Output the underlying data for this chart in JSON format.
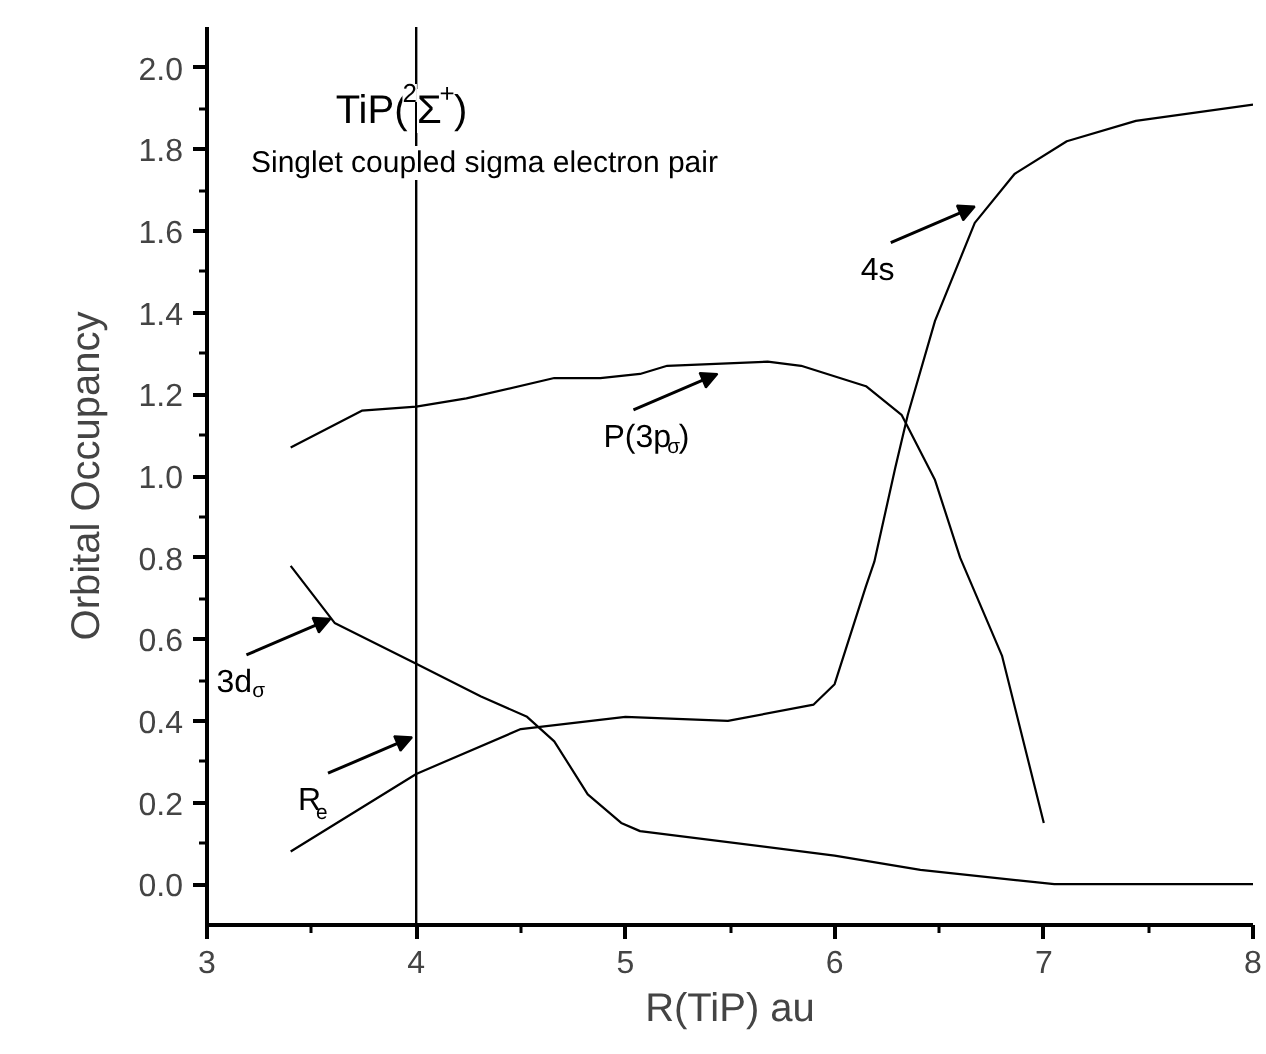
{
  "chart_data": {
    "type": "line",
    "title": "TiP($^{2}$Σ$^{+}$)",
    "subtitle": "Singlet coupled sigma electron pair",
    "xlabel": "R(TiP) au",
    "ylabel": "Orbital Occupancy",
    "xlim": [
      3,
      8
    ],
    "xticks": [
      3,
      4,
      5,
      6,
      7,
      8
    ],
    "ylim": [
      -0.1,
      2.1
    ],
    "yticks": [
      {
        "value": 0,
        "label": "0.0"
      },
      {
        "value": 0.2,
        "label": "0.2"
      },
      {
        "value": 0.4,
        "label": "0.4"
      },
      {
        "value": 0.6,
        "label": "0.6"
      },
      {
        "value": 0.8,
        "label": "0.8"
      },
      {
        "value": 1.0,
        "label": "1.0"
      },
      {
        "value": 1.2,
        "label": "1.2"
      },
      {
        "value": 1.4,
        "label": "1.4"
      },
      {
        "value": 1.6,
        "label": "1.6"
      },
      {
        "value": 1.8,
        "label": "1.8"
      },
      {
        "value": 2.0,
        "label": "2.0"
      }
    ],
    "grid": false,
    "marker": "none",
    "line_style": "solid",
    "series": [
      {
        "color": "#000000",
        "x": [
          3.4,
          4.0,
          4.5,
          5.0,
          5.49,
          5.9,
          6.0,
          6.15,
          6.19,
          6.29,
          6.35,
          6.48,
          6.67,
          6.86,
          7.11,
          7.44,
          8.0
        ],
        "values": [
          0.08,
          0.27,
          0.38,
          0.41,
          0.4,
          0.44,
          0.49,
          0.73,
          0.79,
          1.02,
          1.15,
          1.38,
          1.62,
          1.74,
          1.82,
          1.87,
          1.91
        ]
      },
      {
        "color": "#000000",
        "x": [
          3.4,
          3.74,
          4.0,
          4.24,
          4.66,
          4.88,
          5.07,
          5.2,
          5.68,
          5.84,
          6.15,
          6.32,
          6.48,
          6.6,
          6.8,
          7.0
        ],
        "values": [
          1.07,
          1.16,
          1.17,
          1.19,
          1.24,
          1.24,
          1.25,
          1.27,
          1.28,
          1.27,
          1.22,
          1.15,
          0.99,
          0.8,
          0.56,
          0.15
        ]
      },
      {
        "color": "#000000",
        "x": [
          3.4,
          3.61,
          4.0,
          4.31,
          4.53,
          4.66,
          4.82,
          4.98,
          5.07,
          6.0,
          6.41,
          7.05,
          8.0
        ],
        "values": [
          0.78,
          0.64,
          0.54,
          0.46,
          0.41,
          0.35,
          0.22,
          0.15,
          0.13,
          0.07,
          0.035,
          0.0,
          0.0
        ]
      }
    ],
    "ref_lines": [
      {
        "axis": "x",
        "value": 4,
        "color": "#000000"
      }
    ],
    "annotations": [
      {
        "text": "4s",
        "x": 6.67,
        "y": 1.66
      },
      {
        "text": "P(3p$_{σ}$)",
        "x": 5.44,
        "y": 1.25
      },
      {
        "text": "3d$_{σ}$",
        "x": 3.59,
        "y": 0.65
      },
      {
        "text": "R$_{e}$",
        "x": 3.98,
        "y": 0.36
      }
    ]
  }
}
